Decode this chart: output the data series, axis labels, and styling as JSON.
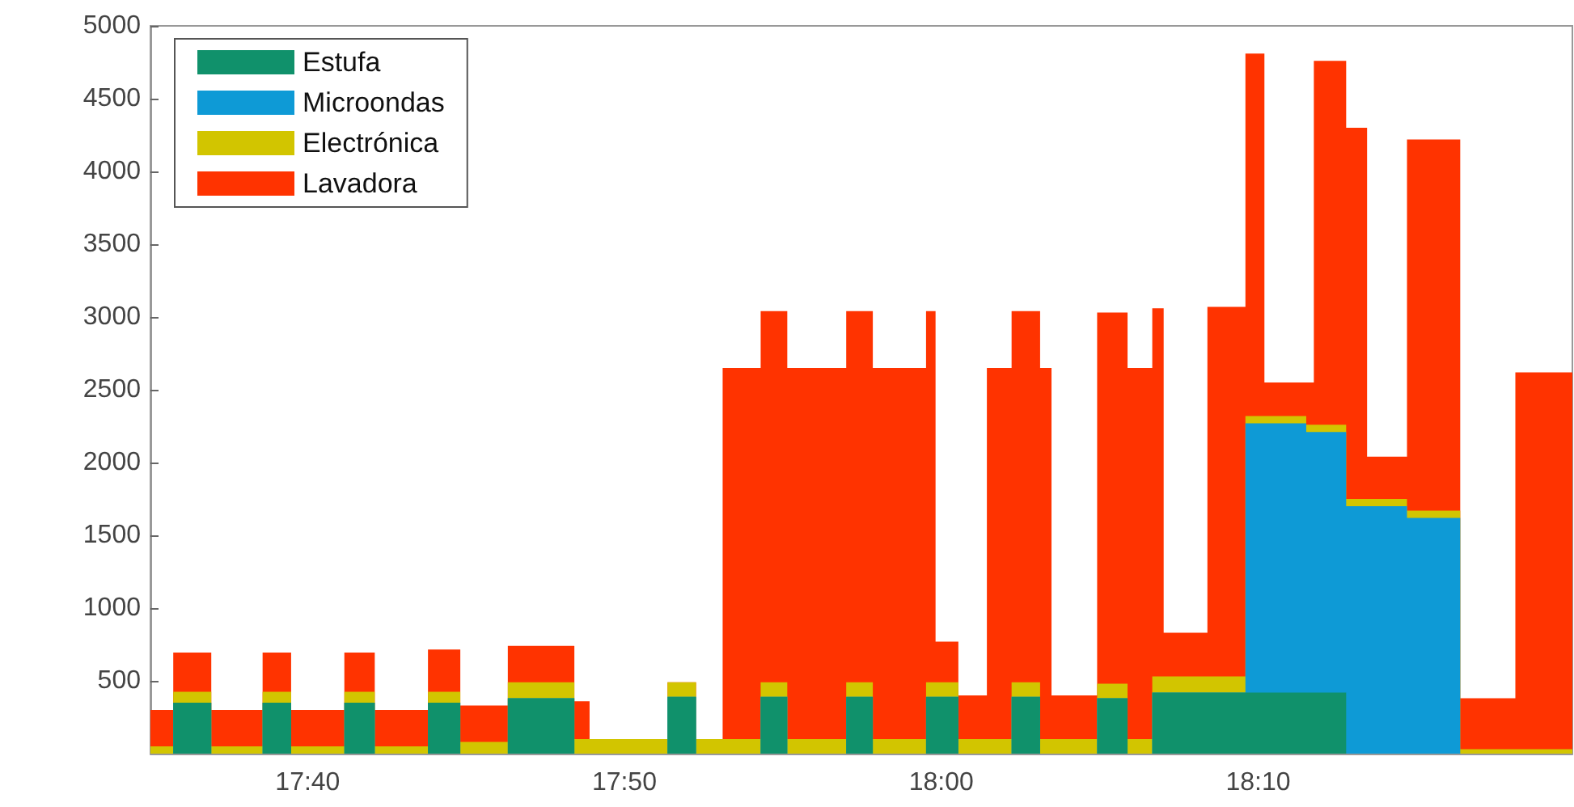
{
  "chart_data": {
    "type": "area",
    "stacked": true,
    "legend": "top left",
    "x": [
      17.584,
      17.596,
      17.596,
      17.616,
      17.616,
      17.643,
      17.643,
      17.658,
      17.658,
      17.686,
      17.686,
      17.702,
      17.702,
      17.73,
      17.73,
      17.747,
      17.747,
      17.772,
      17.772,
      17.807,
      17.807,
      17.815,
      17.815,
      17.856,
      17.856,
      17.871,
      17.871,
      17.885,
      17.885,
      17.905,
      17.905,
      17.919,
      17.919,
      17.95,
      17.95,
      17.964,
      17.964,
      17.992,
      17.992,
      17.997,
      17.997,
      18.009,
      18.009,
      18.024,
      18.024,
      18.037,
      18.037,
      18.052,
      18.052,
      18.058,
      18.058,
      18.082,
      18.082,
      18.098,
      18.098,
      18.111,
      18.111,
      18.117,
      18.117,
      18.14,
      18.14,
      18.16,
      18.16,
      18.17,
      18.17,
      18.192,
      18.192,
      18.196,
      18.196,
      18.213,
      18.213,
      18.224,
      18.224,
      18.245,
      18.245,
      18.273,
      18.273,
      18.302,
      18.302,
      18.332
    ],
    "series": [
      {
        "name": "Estufa",
        "color": "#10916b",
        "values": [
          0,
          0,
          350,
          350,
          0,
          0,
          350,
          350,
          0,
          0,
          350,
          350,
          0,
          0,
          350,
          350,
          0,
          0,
          380,
          380,
          0,
          0,
          0,
          0,
          390,
          390,
          0,
          0,
          0,
          0,
          390,
          390,
          0,
          0,
          390,
          390,
          0,
          0,
          390,
          390,
          390,
          390,
          0,
          0,
          0,
          0,
          390,
          390,
          0,
          0,
          0,
          0,
          380,
          380,
          0,
          0,
          420,
          420,
          420,
          420,
          420,
          420,
          420,
          420,
          420,
          420,
          420,
          420,
          420,
          420,
          0,
          0,
          0,
          0,
          0,
          0,
          0,
          0,
          0,
          0
        ]
      },
      {
        "name": "Microondas",
        "color": "#0e9ad6",
        "values": [
          0,
          0,
          0,
          0,
          0,
          0,
          0,
          0,
          0,
          0,
          0,
          0,
          0,
          0,
          0,
          0,
          0,
          0,
          0,
          0,
          0,
          0,
          0,
          0,
          0,
          0,
          0,
          0,
          0,
          0,
          0,
          0,
          0,
          0,
          0,
          0,
          0,
          0,
          0,
          0,
          0,
          0,
          0,
          0,
          0,
          0,
          0,
          0,
          0,
          0,
          0,
          0,
          0,
          0,
          0,
          0,
          0,
          0,
          0,
          0,
          0,
          0,
          1850,
          1850,
          1850,
          1850,
          1790,
          1790,
          1790,
          1790,
          1700,
          1700,
          1700,
          1700,
          1620,
          1620,
          0,
          0,
          0,
          0
        ]
      },
      {
        "name": "Electrónica",
        "color": "#d2c500",
        "values": [
          50,
          50,
          75,
          75,
          50,
          50,
          75,
          75,
          50,
          50,
          75,
          75,
          50,
          50,
          75,
          75,
          80,
          80,
          110,
          110,
          100,
          100,
          100,
          100,
          100,
          100,
          100,
          100,
          100,
          100,
          100,
          100,
          100,
          100,
          100,
          100,
          100,
          100,
          100,
          100,
          100,
          100,
          100,
          100,
          100,
          100,
          100,
          100,
          100,
          100,
          100,
          100,
          100,
          100,
          100,
          100,
          110,
          110,
          110,
          110,
          110,
          110,
          50,
          50,
          50,
          50,
          50,
          50,
          50,
          50,
          50,
          50,
          50,
          50,
          50,
          50,
          30,
          30,
          30,
          30
        ]
      },
      {
        "name": "Lavadora",
        "color": "#ff3300",
        "values": [
          250,
          250,
          270,
          270,
          250,
          250,
          270,
          270,
          250,
          250,
          270,
          270,
          250,
          250,
          290,
          290,
          250,
          250,
          250,
          250,
          260,
          260,
          0,
          0,
          0,
          0,
          0,
          0,
          2550,
          2550,
          2550,
          2550,
          2550,
          2550,
          2550,
          2550,
          2550,
          2550,
          2550,
          2550,
          280,
          280,
          300,
          300,
          2550,
          2550,
          2550,
          2550,
          2550,
          2550,
          300,
          300,
          2550,
          2550,
          2550,
          2550,
          2530,
          2530,
          300,
          300,
          2540,
          2540,
          2490,
          2490,
          230,
          230,
          290,
          290,
          2500,
          2500,
          2550,
          2550,
          290,
          290,
          2550,
          2550,
          350,
          350,
          2590,
          2590
        ]
      }
    ],
    "xlim": [
      17.584,
      18.332
    ],
    "xticks": [
      {
        "value": 17.6667,
        "label": "17:40"
      },
      {
        "value": 17.8333,
        "label": "17:50"
      },
      {
        "value": 18.0,
        "label": "18:00"
      },
      {
        "value": 18.1667,
        "label": "18:10"
      }
    ],
    "ylim": [
      0,
      5000
    ],
    "yticks": [
      500,
      1000,
      1500,
      2000,
      2500,
      3000,
      3500,
      4000,
      4500,
      5000
    ]
  }
}
